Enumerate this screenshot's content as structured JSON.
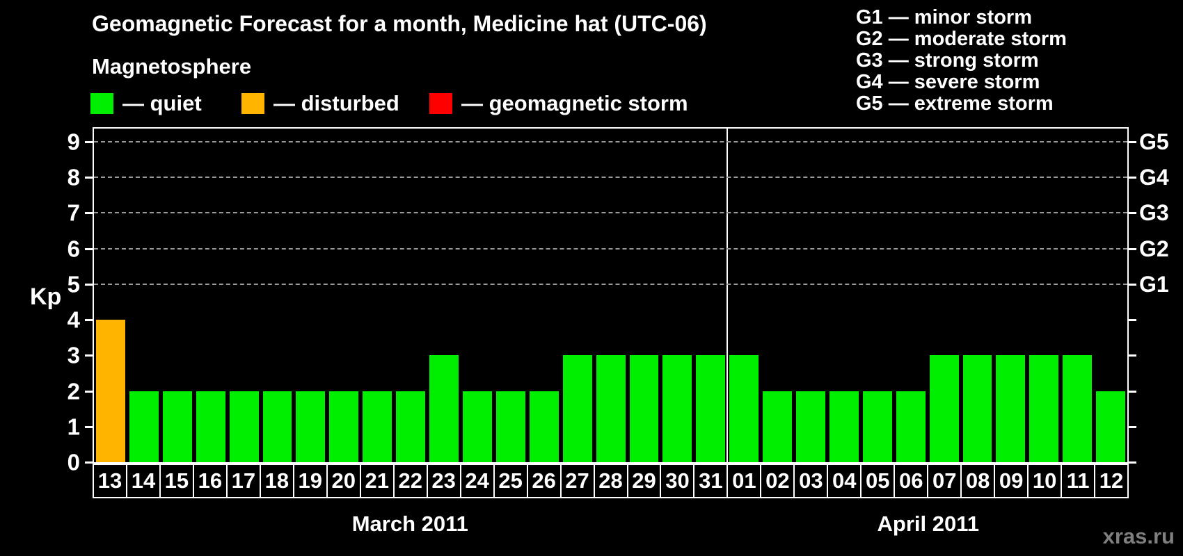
{
  "header": {
    "title": "Geomagnetic Forecast for a month, Medicine hat (UTC-06)",
    "subtitle": "Magnetosphere",
    "legend": [
      {
        "id": "quiet",
        "label": "— quiet",
        "color": "#00EE00"
      },
      {
        "id": "disturbed",
        "label": "— disturbed",
        "color": "#FFB400"
      },
      {
        "id": "storm",
        "label": "— geomagnetic storm",
        "color": "#FF0000"
      }
    ],
    "g_scale_legend": [
      {
        "label": "G1 — minor storm"
      },
      {
        "label": "G2 — moderate storm"
      },
      {
        "label": "G3 — strong storm"
      },
      {
        "label": "G4 — severe storm"
      },
      {
        "label": "G5 — extreme storm"
      }
    ]
  },
  "watermark": "xras.ru",
  "chart_data": {
    "type": "bar",
    "title": "Geomagnetic Forecast for a month, Medicine hat (UTC-06)",
    "ylabel": "Kp",
    "ylim": [
      0,
      9
    ],
    "yticks": [
      0,
      1,
      2,
      3,
      4,
      5,
      6,
      7,
      8,
      9
    ],
    "gridlines_at_kp": [
      5,
      6,
      7,
      8,
      9
    ],
    "right_axis": [
      {
        "kp": 5,
        "label": "G1"
      },
      {
        "kp": 6,
        "label": "G2"
      },
      {
        "kp": 7,
        "label": "G3"
      },
      {
        "kp": 8,
        "label": "G4"
      },
      {
        "kp": 9,
        "label": "G5"
      }
    ],
    "colors": {
      "quiet": "#00EE00",
      "disturbed": "#FFB400",
      "storm": "#FF0000"
    },
    "grid_color": "#9a9a9a",
    "watermark_color": "#7f7f7f",
    "months": [
      {
        "label": "March 2011",
        "days": 19
      },
      {
        "label": "April 2011",
        "days": 12
      }
    ],
    "days": [
      {
        "day": "13",
        "kp": 4,
        "state": "disturbed"
      },
      {
        "day": "14",
        "kp": 2,
        "state": "quiet"
      },
      {
        "day": "15",
        "kp": 2,
        "state": "quiet"
      },
      {
        "day": "16",
        "kp": 2,
        "state": "quiet"
      },
      {
        "day": "17",
        "kp": 2,
        "state": "quiet"
      },
      {
        "day": "18",
        "kp": 2,
        "state": "quiet"
      },
      {
        "day": "19",
        "kp": 2,
        "state": "quiet"
      },
      {
        "day": "20",
        "kp": 2,
        "state": "quiet"
      },
      {
        "day": "21",
        "kp": 2,
        "state": "quiet"
      },
      {
        "day": "22",
        "kp": 2,
        "state": "quiet"
      },
      {
        "day": "23",
        "kp": 3,
        "state": "quiet"
      },
      {
        "day": "24",
        "kp": 2,
        "state": "quiet"
      },
      {
        "day": "25",
        "kp": 2,
        "state": "quiet"
      },
      {
        "day": "26",
        "kp": 2,
        "state": "quiet"
      },
      {
        "day": "27",
        "kp": 3,
        "state": "quiet"
      },
      {
        "day": "28",
        "kp": 3,
        "state": "quiet"
      },
      {
        "day": "29",
        "kp": 3,
        "state": "quiet"
      },
      {
        "day": "30",
        "kp": 3,
        "state": "quiet"
      },
      {
        "day": "31",
        "kp": 3,
        "state": "quiet"
      },
      {
        "day": "01",
        "kp": 3,
        "state": "quiet"
      },
      {
        "day": "02",
        "kp": 2,
        "state": "quiet"
      },
      {
        "day": "03",
        "kp": 2,
        "state": "quiet"
      },
      {
        "day": "04",
        "kp": 2,
        "state": "quiet"
      },
      {
        "day": "05",
        "kp": 2,
        "state": "quiet"
      },
      {
        "day": "06",
        "kp": 2,
        "state": "quiet"
      },
      {
        "day": "07",
        "kp": 3,
        "state": "quiet"
      },
      {
        "day": "08",
        "kp": 3,
        "state": "quiet"
      },
      {
        "day": "09",
        "kp": 3,
        "state": "quiet"
      },
      {
        "day": "10",
        "kp": 3,
        "state": "quiet"
      },
      {
        "day": "11",
        "kp": 3,
        "state": "quiet"
      },
      {
        "day": "12",
        "kp": 2,
        "state": "quiet"
      }
    ]
  }
}
